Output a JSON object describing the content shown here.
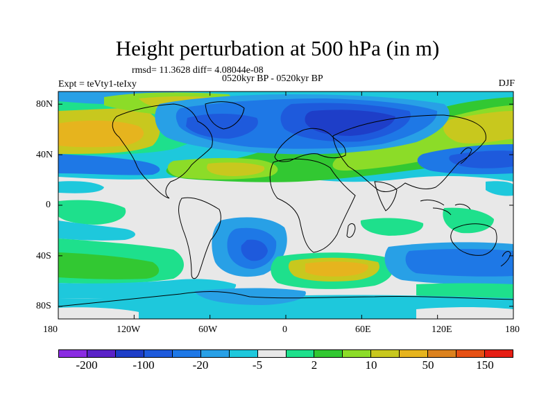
{
  "figure": {
    "title": "Height perturbation at 500 hPa (in m)",
    "stats": "rmsd= 11.3628 diff= 4.08044e-08",
    "period": "0520kyr BP - 0520kyr BP",
    "experiment": "Expt = teVty1-teIxy",
    "season": "DJF"
  },
  "map": {
    "type": "filled-contour-map",
    "variable": "500 hPa geopotential height perturbation",
    "units": "m",
    "lon_range": [
      -180,
      180
    ],
    "lat_range": [
      -90,
      90
    ],
    "x_tick_labels": [
      "180",
      "120W",
      "60W",
      "0",
      "60E",
      "120E",
      "180"
    ],
    "y_tick_labels": [
      "80N",
      "40N",
      "0",
      "40S",
      "80S"
    ],
    "background_value_color": "#e8e8e8"
  },
  "colorbar": {
    "colors": [
      "#8a2be2",
      "#5a22c8",
      "#1e3ec8",
      "#1e5adc",
      "#1e78e6",
      "#28a0e6",
      "#1ec8dc",
      "#e8e8e8",
      "#1ee08c",
      "#32c832",
      "#8cdc28",
      "#c8c81e",
      "#e6b41e",
      "#dc821e",
      "#e65014",
      "#e61e14"
    ],
    "labels": [
      "-200",
      "-100",
      "-20",
      "-5",
      "2",
      "10",
      "50",
      "150"
    ]
  }
}
